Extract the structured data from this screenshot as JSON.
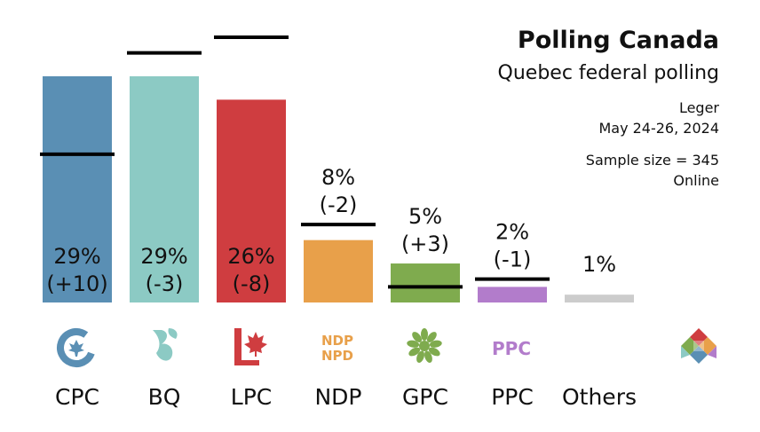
{
  "header": {
    "title": "Polling Canada",
    "subtitle": "Quebec federal polling",
    "pollster": "Leger",
    "dates": "May 24-26, 2024",
    "sample_size": "Sample size = 345",
    "method": "Online"
  },
  "chart_data": {
    "type": "bar",
    "title": "Polling Canada",
    "subtitle": "Quebec federal polling",
    "xlabel": "",
    "ylabel": "",
    "ylim": [
      0,
      30
    ],
    "grid": false,
    "legend": "none",
    "categories": [
      "CPC",
      "BQ",
      "LPC",
      "NDP",
      "GPC",
      "PPC",
      "Others"
    ],
    "values": [
      29,
      29,
      26,
      8,
      5,
      2,
      1
    ],
    "previous_values": [
      19,
      32,
      34,
      10,
      2,
      3,
      null
    ],
    "change_labels": [
      "(+10)",
      "(-3)",
      "(-8)",
      "(-2)",
      "(+3)",
      "(-1)",
      ""
    ],
    "value_labels": [
      "29%",
      "29%",
      "26%",
      "8%",
      "5%",
      "2%",
      "1%"
    ],
    "colors": [
      "#5a8fb4",
      "#8ccac4",
      "#cf3d40",
      "#e8a04a",
      "#7fab4e",
      "#b27ccb",
      "#cccccc"
    ],
    "logo_icons": [
      "cpc-logo-icon",
      "bq-logo-icon",
      "lpc-logo-icon",
      "ndp-logo-icon",
      "gpc-logo-icon",
      "ppc-logo-icon"
    ],
    "logo_text": {
      "ndp": "NDP",
      "npd": "NPD",
      "ppc": "PPC"
    }
  }
}
